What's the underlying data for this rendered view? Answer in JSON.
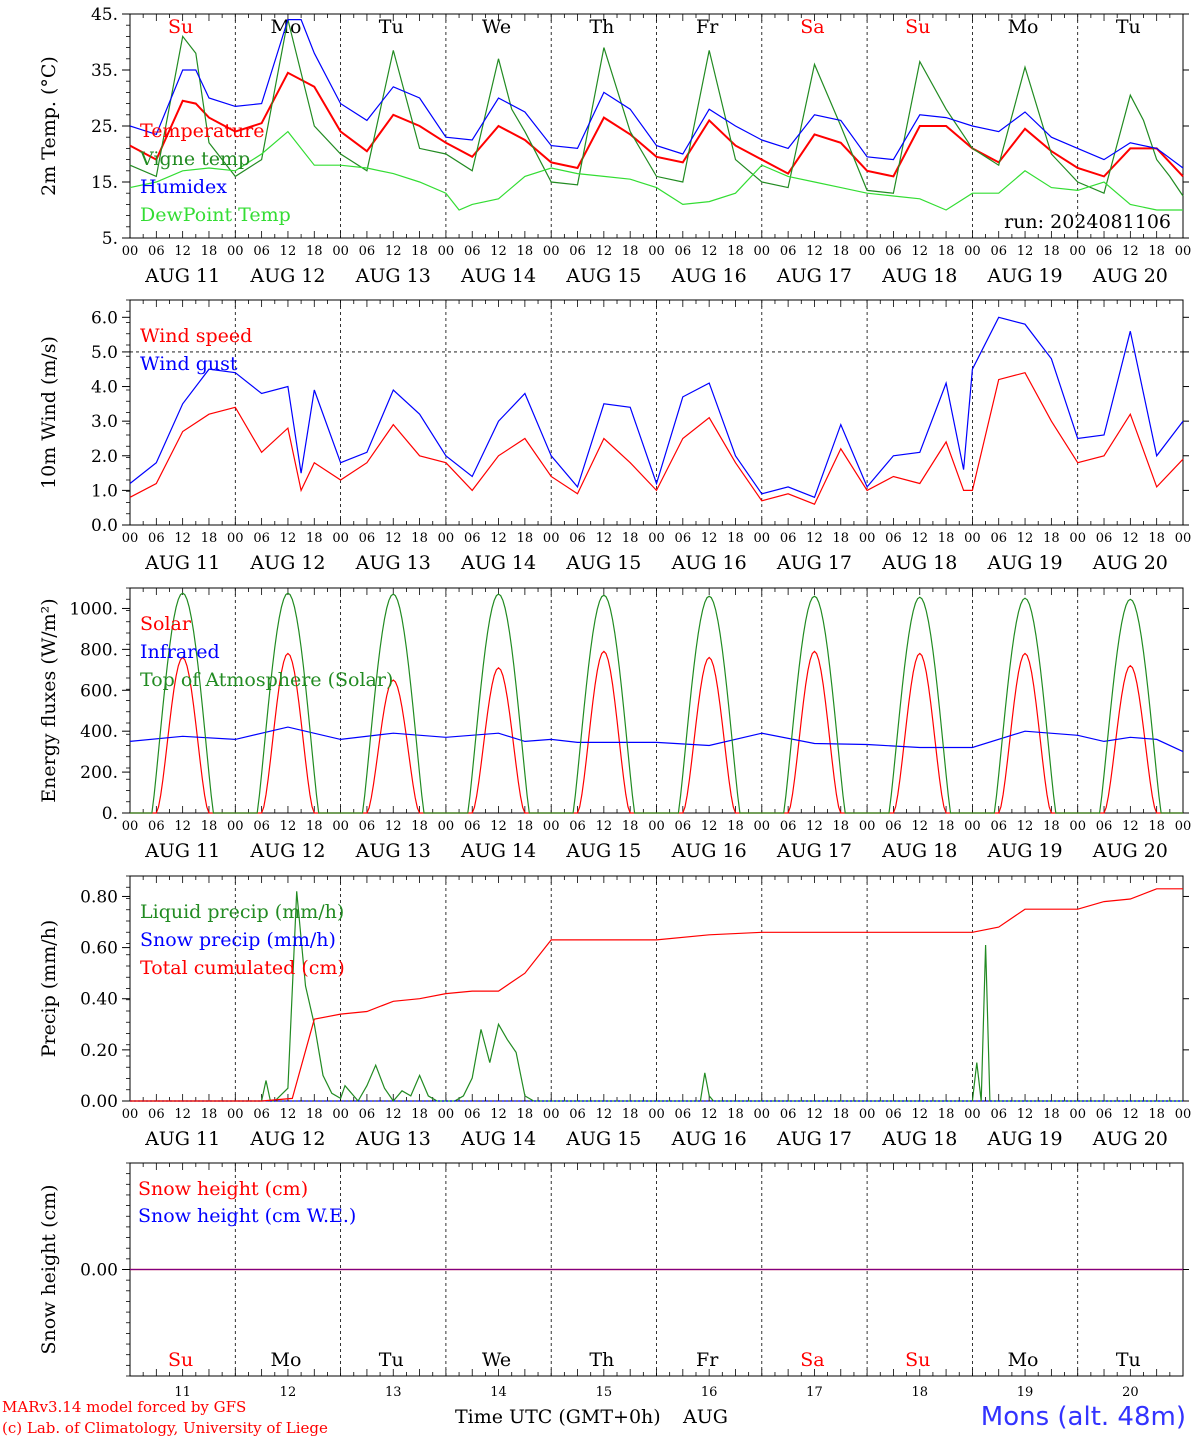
{
  "colors": {
    "red": "#ff0000",
    "green": "#228b22",
    "blue": "#0000ff",
    "lightgreen": "#33dd33",
    "purple": "#800080",
    "weekend": "#ff0000",
    "weekday": "#000000"
  },
  "footer": {
    "credit_line1": "MARv3.14 model forced by GFS",
    "credit_line2": "(c) Lab. of Climatology, University of Liege",
    "station": "Mons (alt. 48m)",
    "xaxis_title": "Time UTC (GMT+0h)",
    "xaxis_month": "AUG"
  },
  "chart_data": {
    "days": {
      "weekday_labels": [
        "Su",
        "Mo",
        "Tu",
        "We",
        "Th",
        "Fr",
        "Sa",
        "Su",
        "Mo",
        "Tu"
      ],
      "weekend_flags": [
        true,
        false,
        false,
        false,
        false,
        false,
        true,
        true,
        false,
        false
      ],
      "date_labels": [
        "AUG 11",
        "AUG 12",
        "AUG 13",
        "AUG 14",
        "AUG 15",
        "AUG 16",
        "AUG 17",
        "AUG 18",
        "AUG 19",
        "AUG 20"
      ],
      "day_numbers": [
        "11",
        "12",
        "13",
        "14",
        "15",
        "16",
        "17",
        "18",
        "19",
        "20"
      ],
      "hour_labels": [
        "00",
        "06",
        "12",
        "18"
      ],
      "end_hour_label": "00"
    },
    "panels": [
      {
        "id": "temperature",
        "type": "line",
        "ylabel": "2m Temp. (°C)",
        "ylim": [
          5,
          45
        ],
        "yticks": [
          "5.",
          "15.",
          "25.",
          "35.",
          "45."
        ],
        "show_weekdays": true,
        "annotation": "run: 2024081106",
        "series": [
          {
            "name": "Temperature",
            "color": "#ff0000",
            "x": [
              0,
              6,
              12,
              15,
              18,
              24,
              30,
              36,
              42,
              48,
              54,
              60,
              66,
              72,
              78,
              84,
              90,
              96,
              102,
              108,
              114,
              120,
              126,
              132,
              138,
              144,
              150,
              156,
              162,
              168,
              174,
              180,
              186,
              192,
              198,
              204,
              210,
              216,
              222,
              228,
              234,
              240
            ],
            "y": [
              21.5,
              19,
              29.5,
              29,
              26.5,
              24,
              25.5,
              34.5,
              32,
              24,
              20.5,
              27,
              25,
              22,
              19.5,
              25,
              22.5,
              18.5,
              17.5,
              26.5,
              23.5,
              19.5,
              18.5,
              26,
              21.5,
              19,
              16.5,
              23.5,
              22,
              17,
              16,
              25,
              25,
              21,
              18.5,
              24.5,
              20.5,
              17.5,
              16,
              21,
              21,
              16
            ]
          },
          {
            "name": "Vigne temp",
            "color": "#228b22",
            "x": [
              0,
              6,
              12,
              15,
              18,
              24,
              30,
              36,
              42,
              48,
              54,
              60,
              66,
              72,
              78,
              84,
              87,
              90,
              96,
              102,
              108,
              114,
              120,
              126,
              132,
              138,
              144,
              150,
              156,
              162,
              168,
              174,
              180,
              186,
              192,
              198,
              204,
              210,
              216,
              222,
              228,
              231,
              234,
              237,
              240
            ],
            "y": [
              18,
              16,
              41,
              38,
              22,
              16,
              19,
              44,
              25,
              20,
              17,
              38.5,
              21,
              20,
              17,
              37,
              28,
              24,
              15,
              14.5,
              39,
              24,
              16,
              15,
              38.5,
              19,
              15,
              14,
              36,
              25,
              13.5,
              13,
              36.5,
              28,
              21,
              18,
              35.5,
              20,
              15,
              13,
              30.5,
              26,
              19,
              16,
              12.5
            ]
          },
          {
            "name": "Humidex",
            "color": "#0000ff",
            "x": [
              0,
              6,
              12,
              15,
              18,
              24,
              30,
              36,
              39,
              42,
              48,
              54,
              60,
              66,
              72,
              78,
              84,
              90,
              96,
              102,
              108,
              114,
              120,
              126,
              132,
              138,
              144,
              150,
              156,
              162,
              168,
              174,
              180,
              186,
              192,
              198,
              204,
              210,
              216,
              222,
              228,
              234,
              240
            ],
            "y": [
              25,
              23.5,
              35,
              35,
              30,
              28.5,
              29,
              44,
              44,
              38,
              29,
              26,
              32,
              30,
              23,
              22.5,
              30,
              27.5,
              21.5,
              21,
              31,
              28,
              21.5,
              20,
              28,
              25,
              22.5,
              21,
              27,
              26,
              19.5,
              19,
              27,
              26.5,
              25,
              24,
              27.5,
              23,
              21,
              19,
              22,
              21,
              17.5
            ]
          },
          {
            "name": "DewPoint Temp",
            "color": "#33dd33",
            "x": [
              0,
              6,
              12,
              18,
              24,
              30,
              36,
              42,
              48,
              54,
              60,
              66,
              72,
              75,
              78,
              84,
              90,
              96,
              102,
              108,
              114,
              120,
              126,
              132,
              138,
              144,
              150,
              156,
              162,
              168,
              174,
              180,
              186,
              192,
              198,
              204,
              210,
              216,
              222,
              228,
              234,
              240
            ],
            "y": [
              14,
              15,
              17,
              17.5,
              17,
              20,
              24,
              18,
              18,
              17.5,
              16.5,
              15,
              13,
              10,
              11,
              12,
              16,
              17.5,
              16.5,
              16,
              15.5,
              14,
              11,
              11.5,
              13,
              18,
              16,
              15,
              14,
              13,
              12.5,
              12,
              10,
              13,
              13,
              17,
              14,
              13.5,
              15,
              11,
              10,
              10
            ]
          }
        ]
      },
      {
        "id": "wind",
        "type": "line",
        "ylabel": "10m Wind (m/s)",
        "ylim": [
          0,
          6.5
        ],
        "yticks": [
          "0.0",
          "1.0",
          "2.0",
          "3.0",
          "4.0",
          "5.0",
          "6.0"
        ],
        "reference_line": 5.0,
        "show_weekdays": false,
        "series": [
          {
            "name": "Wind speed",
            "color": "#ff0000",
            "x": [
              0,
              6,
              12,
              18,
              24,
              30,
              36,
              39,
              42,
              48,
              54,
              60,
              66,
              72,
              78,
              84,
              90,
              96,
              102,
              108,
              114,
              120,
              126,
              132,
              138,
              144,
              150,
              156,
              162,
              168,
              174,
              180,
              186,
              190,
              192,
              198,
              204,
              210,
              216,
              222,
              228,
              234,
              240
            ],
            "y": [
              0.8,
              1.2,
              2.7,
              3.2,
              3.4,
              2.1,
              2.8,
              1.0,
              1.8,
              1.3,
              1.8,
              2.9,
              2.0,
              1.8,
              1.0,
              2.0,
              2.5,
              1.4,
              0.9,
              2.5,
              1.8,
              1.0,
              2.5,
              3.1,
              1.8,
              0.7,
              0.9,
              0.6,
              2.2,
              1.0,
              1.4,
              1.2,
              2.4,
              1.0,
              1.0,
              4.2,
              4.4,
              3.0,
              1.8,
              2.0,
              3.2,
              1.1,
              1.9
            ]
          },
          {
            "name": "Wind gust",
            "color": "#0000ff",
            "x": [
              0,
              6,
              12,
              18,
              24,
              30,
              36,
              39,
              42,
              48,
              54,
              60,
              66,
              72,
              78,
              84,
              90,
              96,
              102,
              108,
              114,
              120,
              126,
              132,
              138,
              144,
              150,
              156,
              162,
              168,
              174,
              180,
              186,
              190,
              192,
              198,
              204,
              210,
              216,
              222,
              228,
              234,
              240
            ],
            "y": [
              1.2,
              1.8,
              3.5,
              4.5,
              4.4,
              3.8,
              4.0,
              1.5,
              3.9,
              1.8,
              2.1,
              3.9,
              3.2,
              2.0,
              1.4,
              3.0,
              3.8,
              2.0,
              1.1,
              3.5,
              3.4,
              1.2,
              3.7,
              4.1,
              2.0,
              0.9,
              1.1,
              0.8,
              2.9,
              1.1,
              2.0,
              2.1,
              4.1,
              1.6,
              4.5,
              6.0,
              5.8,
              4.8,
              2.5,
              2.6,
              5.6,
              2.0,
              3.0
            ]
          }
        ]
      },
      {
        "id": "energy",
        "type": "line",
        "ylabel": "Energy fluxes (W/m²)",
        "ylim": [
          0,
          1100
        ],
        "yticks": [
          "0.",
          "200.",
          "400.",
          "600.",
          "800.",
          "1000."
        ],
        "show_weekdays": false,
        "series": [
          {
            "name": "Solar",
            "color": "#ff0000",
            "diurnal": true,
            "peaks": [
              760,
              780,
              650,
              710,
              790,
              760,
              790,
              780,
              780,
              720
            ]
          },
          {
            "name": "Infrared",
            "color": "#0000ff",
            "x": [
              0,
              12,
              24,
              36,
              48,
              60,
              72,
              84,
              90,
              96,
              102,
              120,
              132,
              144,
              156,
              168,
              180,
              192,
              204,
              216,
              222,
              228,
              234,
              240
            ],
            "y": [
              350,
              375,
              360,
              420,
              360,
              390,
              370,
              390,
              350,
              360,
              345,
              345,
              330,
              390,
              340,
              335,
              320,
              320,
              400,
              380,
              350,
              370,
              360,
              300
            ]
          },
          {
            "name": "Top of Atmosphere (Solar)",
            "color": "#228b22",
            "diurnal": true,
            "peaks": [
              1075,
              1075,
              1070,
              1070,
              1065,
              1060,
              1060,
              1055,
              1050,
              1045
            ]
          }
        ]
      },
      {
        "id": "precip",
        "type": "line",
        "ylabel": "Precip (mm/h)",
        "ylim": [
          0,
          0.88
        ],
        "yticks": [
          "0.00",
          "0.20",
          "0.40",
          "0.60",
          "0.80"
        ],
        "show_weekdays": false,
        "series": [
          {
            "name": "Liquid precip (mm/h)",
            "color": "#228b22",
            "x": [
              0,
              30,
              31,
              32,
              33,
              36,
              38,
              40,
              42,
              44,
              46,
              48,
              49,
              50,
              52,
              54,
              56,
              58,
              60,
              62,
              64,
              66,
              68,
              70,
              72,
              74,
              76,
              78,
              80,
              82,
              84,
              86,
              88,
              90,
              92,
              94,
              96,
              97,
              98,
              100,
              120,
              130,
              131,
              132,
              133,
              134,
              192,
              193,
              194,
              195,
              196,
              197,
              198,
              199,
              200,
              240
            ],
            "y": [
              0,
              0,
              0.08,
              0,
              0,
              0.05,
              0.82,
              0.45,
              0.3,
              0.1,
              0.03,
              0.01,
              0.06,
              0.04,
              0,
              0.06,
              0.14,
              0.05,
              0,
              0.04,
              0.02,
              0.1,
              0.02,
              0,
              0,
              0,
              0.02,
              0.09,
              0.28,
              0.15,
              0.3,
              0.24,
              0.19,
              0.02,
              0,
              0,
              0,
              0,
              0,
              0,
              0,
              0,
              0.11,
              0.02,
              0,
              0,
              0,
              0.15,
              0,
              0.61,
              0,
              0,
              0,
              0,
              0,
              0
            ]
          },
          {
            "name": "Snow precip (mm/h)",
            "color": "#0000ff",
            "x": [
              0,
              240
            ],
            "y": [
              0,
              0
            ]
          },
          {
            "name": "Total cumulated (cm)",
            "color": "#ff0000",
            "x": [
              0,
              30,
              37,
              42,
              48,
              54,
              60,
              66,
              72,
              78,
              84,
              90,
              96,
              120,
              132,
              144,
              180,
              192,
              198,
              204,
              210,
              216,
              222,
              228,
              234,
              240
            ],
            "y": [
              0,
              0,
              0.01,
              0.32,
              0.34,
              0.35,
              0.39,
              0.4,
              0.42,
              0.43,
              0.43,
              0.5,
              0.63,
              0.63,
              0.65,
              0.66,
              0.66,
              0.66,
              0.68,
              0.75,
              0.75,
              0.75,
              0.78,
              0.79,
              0.83,
              0.83
            ]
          }
        ]
      },
      {
        "id": "snow",
        "type": "line",
        "ylabel": "Snow height (cm)",
        "ylim": [
          -1,
          1
        ],
        "yticks": [
          "0.00"
        ],
        "show_weekdays": true,
        "series": [
          {
            "name": "Snow height (cm)",
            "color": "#ff0000",
            "x": [
              0,
              240
            ],
            "y": [
              0,
              0
            ]
          },
          {
            "name": "Snow height (cm W.E.)",
            "color": "#0000ff",
            "x": [
              0,
              240
            ],
            "y": [
              0,
              0
            ]
          }
        ]
      }
    ]
  }
}
